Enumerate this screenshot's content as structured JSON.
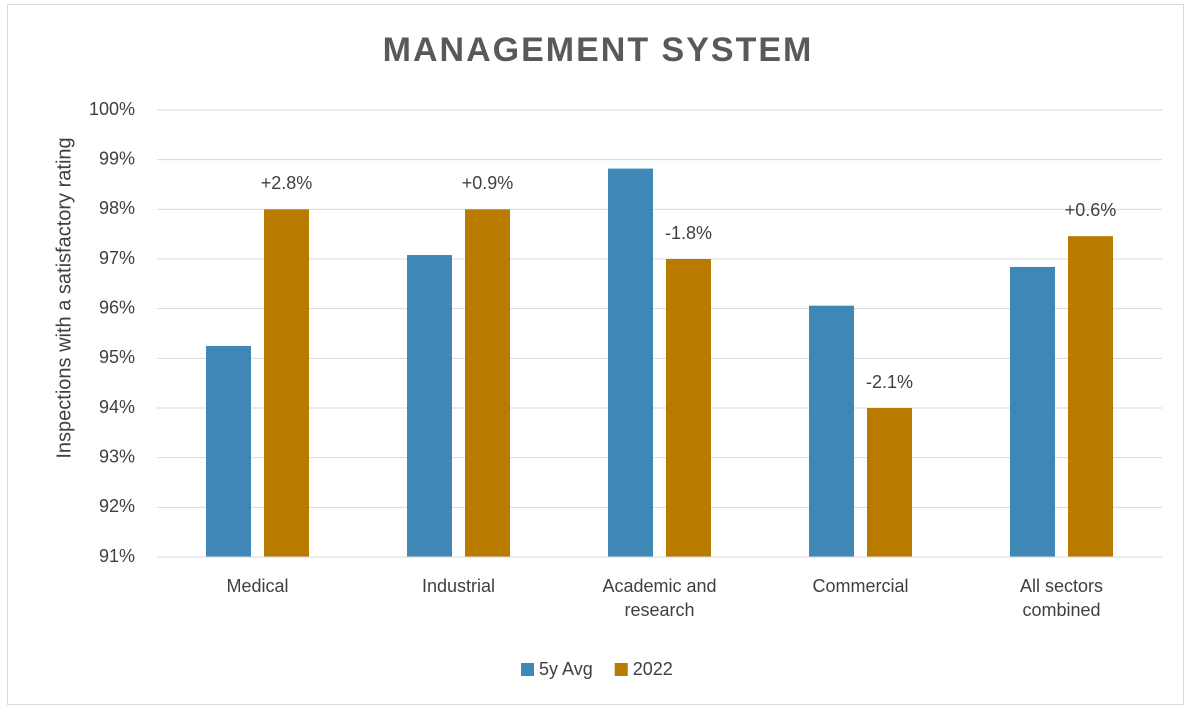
{
  "chart_data": {
    "type": "bar",
    "title": "MANAGEMENT SYSTEM",
    "y_axis_label": "Inspections with a satisfactory rating",
    "categories": [
      "Medical",
      "Industrial",
      "Academic and research",
      "Commercial",
      "All sectors combined"
    ],
    "series": [
      {
        "name": "5y Avg",
        "color": "#3f88b5",
        "values": [
          95.25,
          97.08,
          98.82,
          96.06,
          96.84
        ]
      },
      {
        "name": "2022",
        "color": "#b97a00",
        "values": [
          98,
          98,
          97,
          94,
          97.46
        ]
      }
    ],
    "difference_labels": [
      "+2.8%",
      "+0.9%",
      "-1.8%",
      "-2.1%",
      "+0.6%"
    ],
    "ylim": [
      91,
      100
    ],
    "yticks": [
      {
        "value": 91,
        "label": "91%"
      },
      {
        "value": 92,
        "label": "92%"
      },
      {
        "value": 93,
        "label": "93%"
      },
      {
        "value": 94,
        "label": "94%"
      },
      {
        "value": 95,
        "label": "95%"
      },
      {
        "value": 96,
        "label": "96%"
      },
      {
        "value": 97,
        "label": "97%"
      },
      {
        "value": 98,
        "label": "98%"
      },
      {
        "value": 99,
        "label": "99%"
      },
      {
        "value": 100,
        "label": "100%"
      }
    ],
    "grid": true,
    "legend": "bottom"
  }
}
